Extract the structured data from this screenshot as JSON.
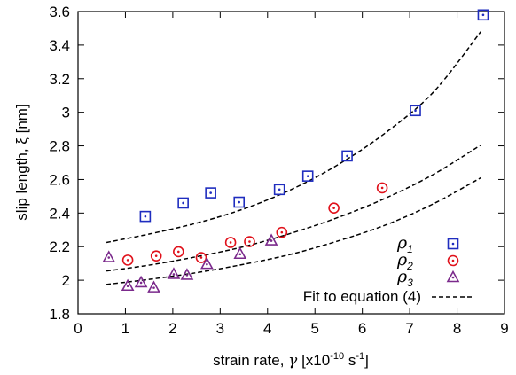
{
  "chart_data": {
    "type": "scatter",
    "xlabel": "strain rate, γ [x10-10 s-1]",
    "xlabel_parts": {
      "main": "strain rate, ",
      "symbol": "γ",
      "open": " [x10",
      "exp": "-10",
      "unit": " s",
      "unit_exp": "-1",
      "close": "]"
    },
    "ylabel": "slip length, ξ [nm]",
    "xlim": [
      0,
      9
    ],
    "ylim": [
      1.8,
      3.6
    ],
    "x_ticks": [
      "0",
      "1",
      "2",
      "3",
      "4",
      "5",
      "6",
      "7",
      "8",
      "9"
    ],
    "y_ticks": [
      "1.8",
      "2",
      "2.2",
      "2.4",
      "2.6",
      "2.8",
      "3",
      "3.2",
      "3.4",
      "3.6"
    ],
    "grid": false,
    "legend_position": "bottom-right",
    "series": [
      {
        "name": "ρ1",
        "symbol": "ρ",
        "subscript": "1",
        "marker": "square-dot",
        "color": "#1f2dbf",
        "points": [
          [
            1.42,
            2.38
          ],
          [
            2.22,
            2.46
          ],
          [
            2.8,
            2.52
          ],
          [
            3.4,
            2.465
          ],
          [
            4.25,
            2.54
          ],
          [
            4.85,
            2.62
          ],
          [
            5.68,
            2.74
          ],
          [
            7.12,
            3.01
          ],
          [
            8.55,
            3.58
          ]
        ]
      },
      {
        "name": "ρ2",
        "symbol": "ρ",
        "subscript": "2",
        "marker": "circle-dot",
        "color": "#e0101a",
        "points": [
          [
            1.05,
            2.12
          ],
          [
            1.65,
            2.145
          ],
          [
            2.12,
            2.17
          ],
          [
            2.6,
            2.135
          ],
          [
            3.22,
            2.225
          ],
          [
            3.62,
            2.23
          ],
          [
            4.3,
            2.285
          ],
          [
            5.4,
            2.43
          ],
          [
            6.42,
            2.55
          ]
        ]
      },
      {
        "name": "ρ3",
        "symbol": "ρ",
        "subscript": "3",
        "marker": "triangle-dot",
        "color": "#7b2a8c",
        "points": [
          [
            0.65,
            2.135
          ],
          [
            1.05,
            1.965
          ],
          [
            1.33,
            1.985
          ],
          [
            1.6,
            1.955
          ],
          [
            2.02,
            2.035
          ],
          [
            2.3,
            2.03
          ],
          [
            2.72,
            2.095
          ],
          [
            3.42,
            2.155
          ],
          [
            4.08,
            2.235
          ]
        ]
      },
      {
        "name": "Fit to equation (4)",
        "marker": "dashed-line",
        "color": "#000000",
        "curves": [
          [
            [
              0.6,
              2.225
            ],
            [
              1.5,
              2.275
            ],
            [
              2.5,
              2.34
            ],
            [
              3.5,
              2.425
            ],
            [
              4.5,
              2.54
            ],
            [
              5.5,
              2.69
            ],
            [
              6.5,
              2.88
            ],
            [
              7.5,
              3.12
            ],
            [
              8.5,
              3.48
            ]
          ],
          [
            [
              0.6,
              2.055
            ],
            [
              1.5,
              2.09
            ],
            [
              2.5,
              2.14
            ],
            [
              3.5,
              2.2
            ],
            [
              4.5,
              2.28
            ],
            [
              5.5,
              2.375
            ],
            [
              6.5,
              2.49
            ],
            [
              7.5,
              2.63
            ],
            [
              8.5,
              2.805
            ]
          ],
          [
            [
              0.6,
              1.975
            ],
            [
              1.5,
              2.005
            ],
            [
              2.5,
              2.045
            ],
            [
              3.5,
              2.095
            ],
            [
              4.5,
              2.155
            ],
            [
              5.5,
              2.235
            ],
            [
              6.5,
              2.33
            ],
            [
              7.5,
              2.455
            ],
            [
              8.5,
              2.61
            ]
          ]
        ]
      }
    ]
  }
}
